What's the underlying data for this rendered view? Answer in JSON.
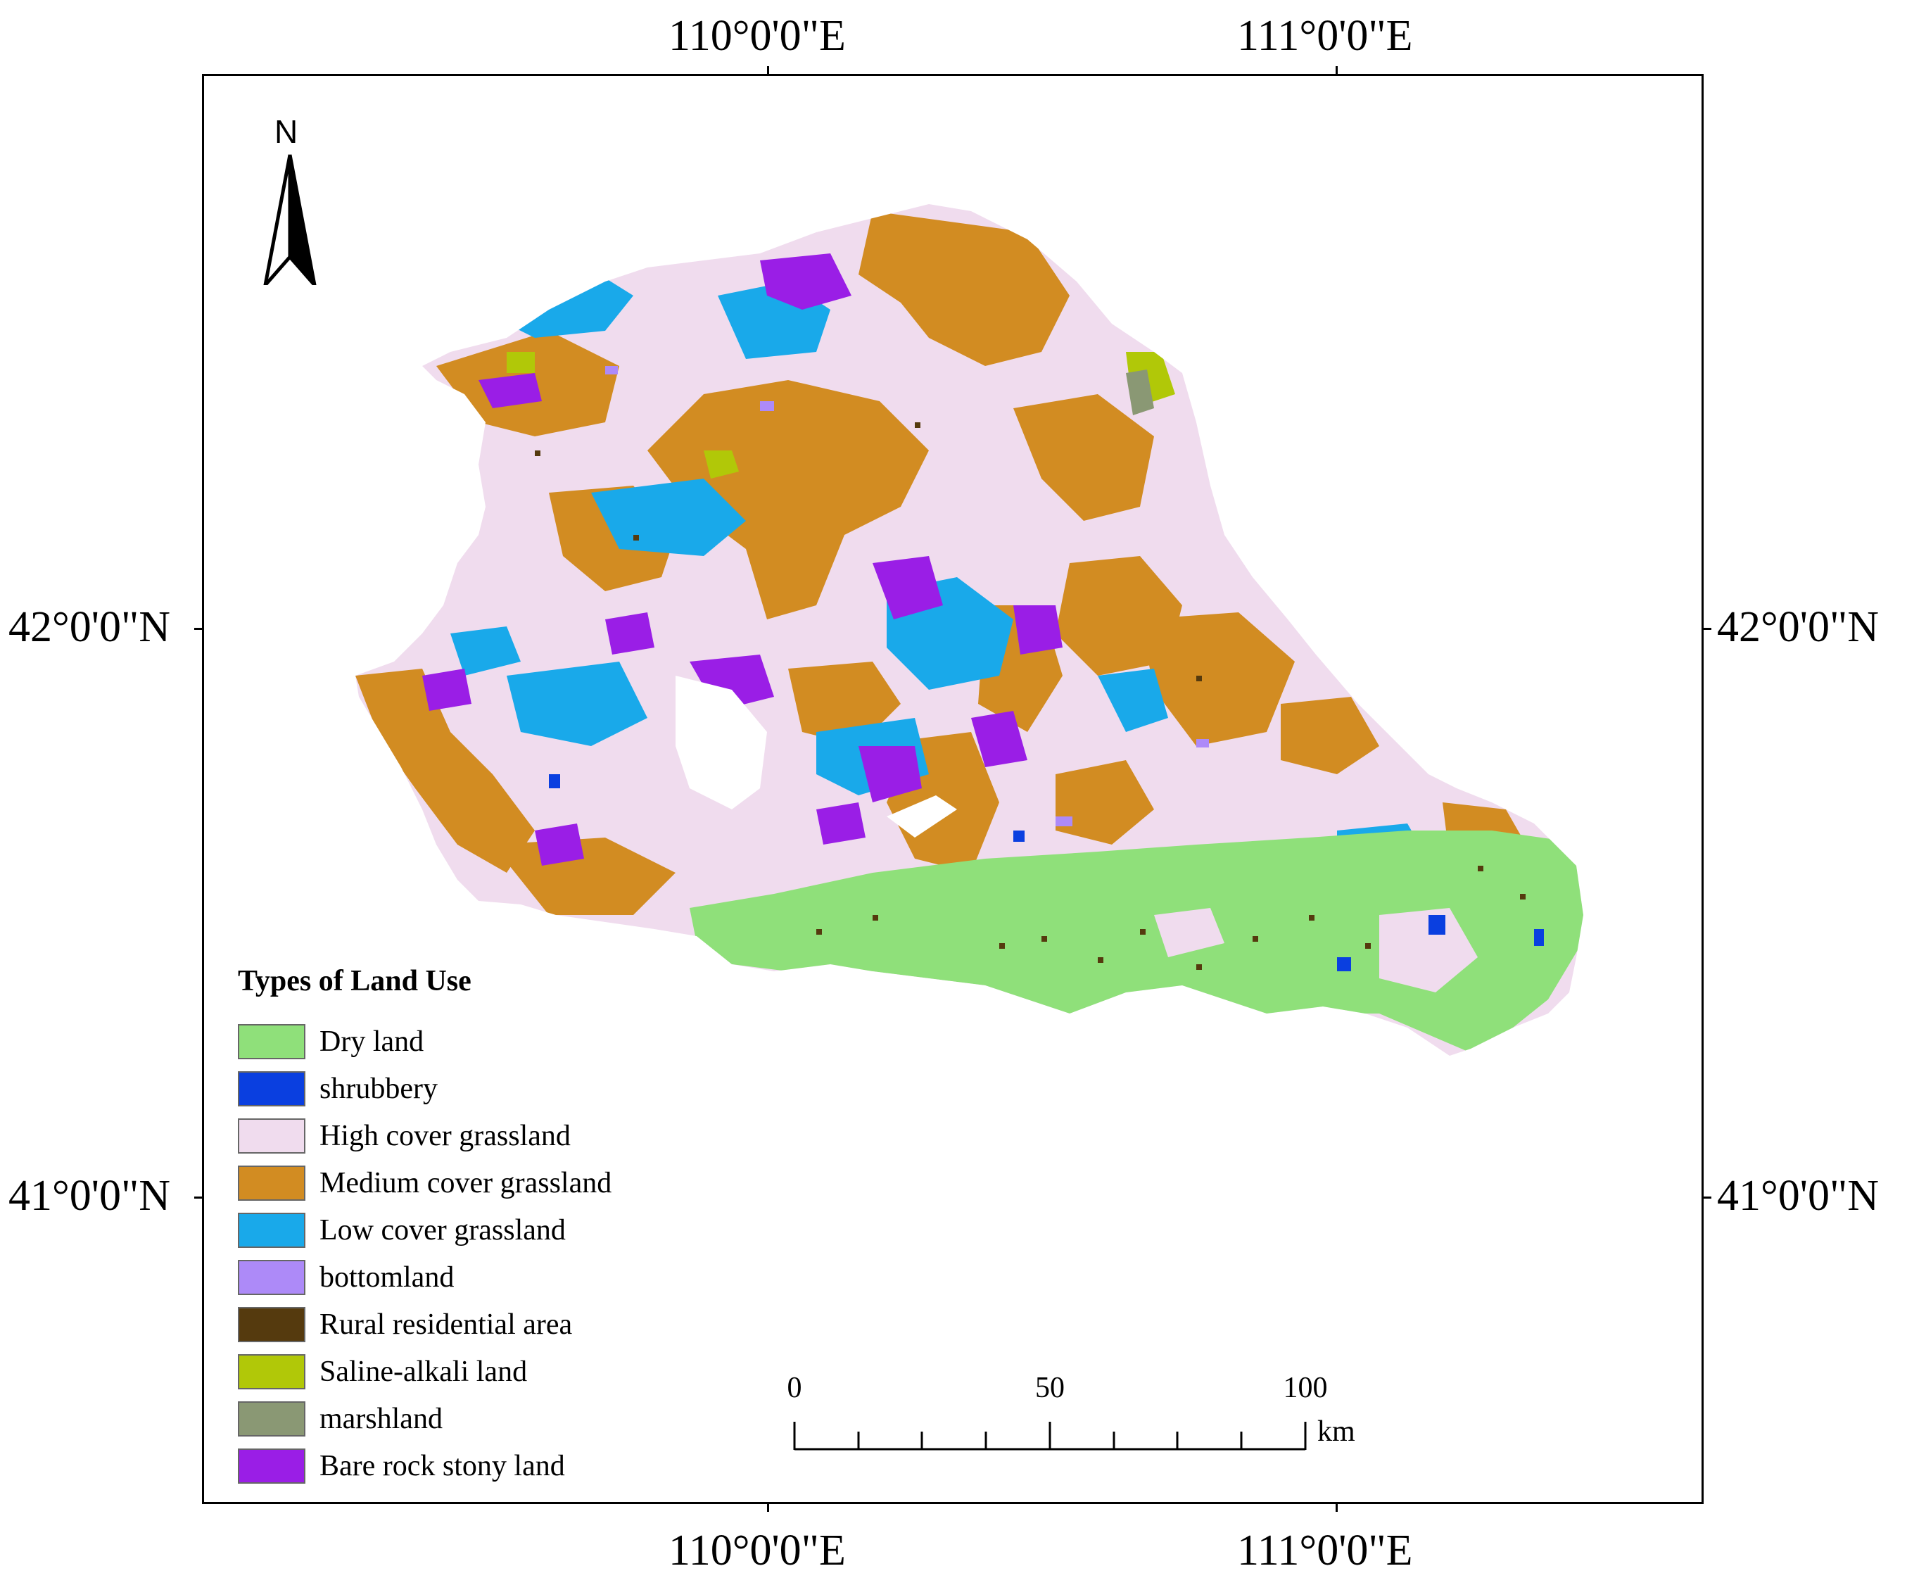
{
  "coordinates": {
    "top": [
      "110°0'0\"E",
      "111°0'0\"E"
    ],
    "bottom": [
      "110°0'0\"E",
      "111°0'0\"E"
    ],
    "left": [
      "42°0'0\"N",
      "41°0'0\"N"
    ],
    "right": [
      "42°0'0\"N",
      "41°0'0\"N"
    ]
  },
  "north_arrow": {
    "label": "N"
  },
  "legend": {
    "title": "Types of Land Use",
    "items": [
      {
        "label": "Dry land",
        "color": "#8fe07a"
      },
      {
        "label": "shrubbery",
        "color": "#0a3fe0"
      },
      {
        "label": "High cover grassland",
        "color": "#f0dcee"
      },
      {
        "label": "Medium cover grassland",
        "color": "#d28c22"
      },
      {
        "label": "Low cover grassland",
        "color": "#19a9ea"
      },
      {
        "label": "bottomland",
        "color": "#ad8af8"
      },
      {
        "label": "Rural residential area",
        "color": "#553a0e"
      },
      {
        "label": "Saline-alkali land",
        "color": "#b1c808"
      },
      {
        "label": "marshland",
        "color": "#8a9874"
      },
      {
        "label": "Bare rock stony land",
        "color": "#9a1ee6"
      }
    ]
  },
  "scale_bar": {
    "labels": [
      "0",
      "50",
      "100"
    ],
    "unit": "km"
  }
}
